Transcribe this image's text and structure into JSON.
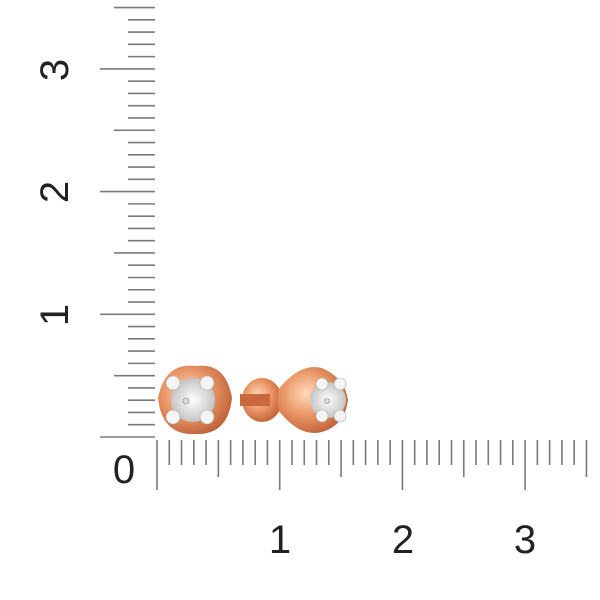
{
  "ruler": {
    "unit": "cm",
    "vertical_labels": [
      "1",
      "2",
      "3"
    ],
    "horizontal_labels": [
      "1",
      "2",
      "3"
    ],
    "origin_label": "0",
    "tick_color": "#7a7a7a"
  },
  "product": {
    "name": "stud earrings",
    "metal_color": "#e89a6a",
    "setting_color": "#e6e6e6"
  }
}
